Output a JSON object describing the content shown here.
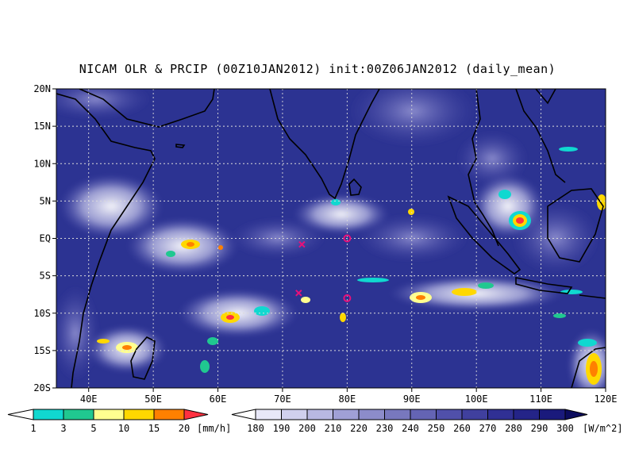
{
  "title": "NICAM OLR & PRCIP (00Z10JAN2012) init:00Z06JAN2012 (daily_mean)",
  "map": {
    "lon_range": [
      35,
      120
    ],
    "lat_range": [
      -20,
      20
    ],
    "x_ticks": [
      {
        "lon": 40,
        "label": "40E"
      },
      {
        "lon": 50,
        "label": "50E"
      },
      {
        "lon": 60,
        "label": "60E"
      },
      {
        "lon": 70,
        "label": "70E"
      },
      {
        "lon": 80,
        "label": "80E"
      },
      {
        "lon": 90,
        "label": "90E"
      },
      {
        "lon": 100,
        "label": "100E"
      },
      {
        "lon": 110,
        "label": "110E"
      },
      {
        "lon": 120,
        "label": "120E"
      }
    ],
    "y_ticks": [
      {
        "lat": 20,
        "label": "20N"
      },
      {
        "lat": 15,
        "label": "15N"
      },
      {
        "lat": 10,
        "label": "10N"
      },
      {
        "lat": 5,
        "label": "5N"
      },
      {
        "lat": 0,
        "label": "EQ"
      },
      {
        "lat": -5,
        "label": "5S"
      },
      {
        "lat": -10,
        "label": "10S"
      },
      {
        "lat": -15,
        "label": "15S"
      },
      {
        "lat": -20,
        "label": "20S"
      }
    ],
    "gridlines": true,
    "markers": [
      {
        "type": "x",
        "lon": 73,
        "lat": -0.8,
        "color": "#e8107a"
      },
      {
        "type": "x",
        "lon": 72.5,
        "lat": -7.3,
        "color": "#e8107a"
      },
      {
        "type": "o",
        "lon": 80,
        "lat": 0,
        "color": "#e8107a"
      },
      {
        "type": "o",
        "lon": 80,
        "lat": -8,
        "color": "#e8107a"
      }
    ]
  },
  "precip_colorbar": {
    "unit": "[mm/h]",
    "labels": [
      "1",
      "3",
      "5",
      "10",
      "15",
      "20"
    ],
    "colors": [
      "#10d8d0",
      "#20c890",
      "#ffff90",
      "#ffd800",
      "#ff8000",
      "#ff3040"
    ]
  },
  "olr_colorbar": {
    "unit": "[W/m^2]",
    "labels": [
      "180",
      "190",
      "200",
      "210",
      "220",
      "230",
      "240",
      "250",
      "260",
      "270",
      "280",
      "290",
      "300"
    ],
    "colors": [
      "#e8e8f8",
      "#d0d0ee",
      "#b8b8e2",
      "#a0a0d6",
      "#8c8cca",
      "#7878be",
      "#6464b4",
      "#5050aa",
      "#40409e",
      "#303094",
      "#242488",
      "#1a1a7c",
      "#121270",
      "#0c0c5e"
    ]
  }
}
